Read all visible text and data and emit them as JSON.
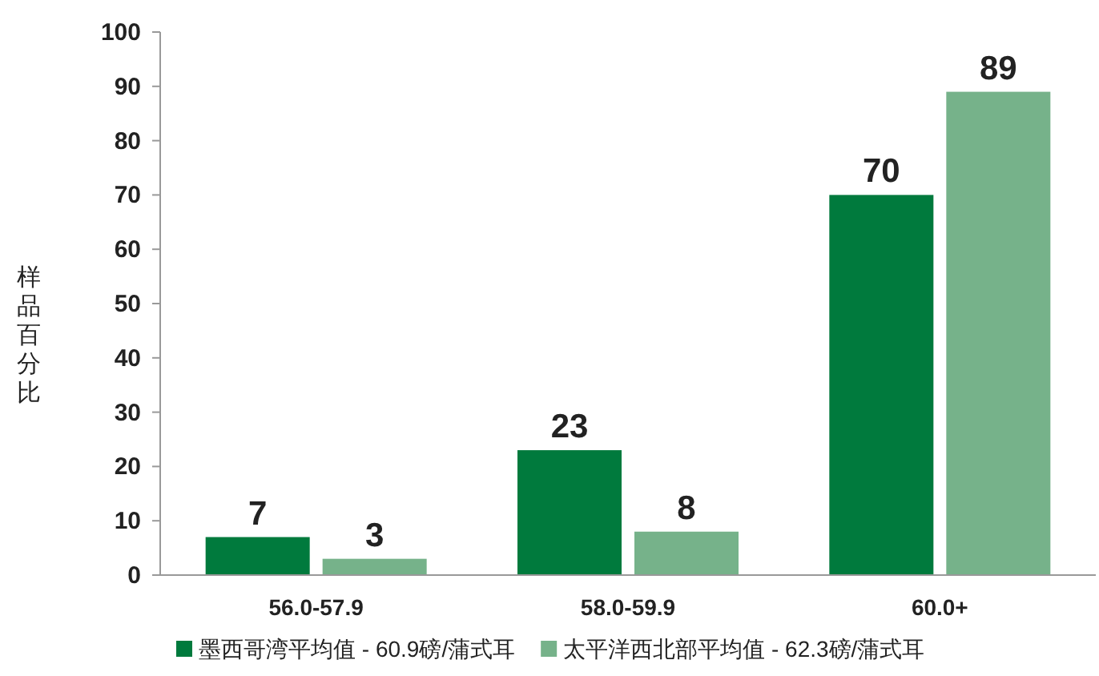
{
  "chart_data": {
    "type": "bar",
    "ylabel": "样品百分比",
    "categories": [
      "56.0-57.9",
      "58.0-59.9",
      "60.0+"
    ],
    "series": [
      {
        "name": "墨西哥湾平均值 - 60.9磅/蒲式耳",
        "color": "#007a3d",
        "values": [
          7,
          23,
          70
        ]
      },
      {
        "name": "太平洋西北部平均值 - 62.3磅/蒲式耳",
        "color": "#76b28a",
        "values": [
          3,
          8,
          89
        ]
      }
    ],
    "ylim": [
      0,
      100
    ],
    "yticks": [
      0,
      10,
      20,
      30,
      40,
      50,
      60,
      70,
      80,
      90,
      100
    ],
    "data_labels": true,
    "legend": "bottom"
  }
}
